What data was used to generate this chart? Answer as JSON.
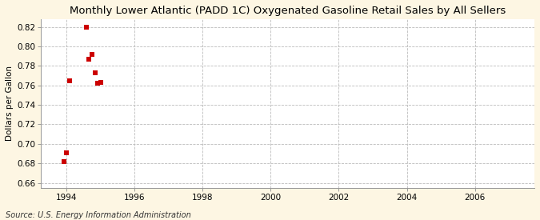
{
  "title": "Monthly Lower Atlantic (PADD 1C) Oxygenated Gasoline Retail Sales by All Sellers",
  "ylabel": "Dollars per Gallon",
  "source": "Source: U.S. Energy Information Administration",
  "background_color": "#fdf6e3",
  "plot_bg_color": "#ffffff",
  "x_data": [
    1993.917,
    1994.0,
    1994.083,
    1994.583,
    1994.667,
    1994.75,
    1994.833,
    1994.917,
    1995.0
  ],
  "y_data": [
    0.682,
    0.691,
    0.765,
    0.82,
    0.787,
    0.792,
    0.773,
    0.762,
    0.763
  ],
  "marker_color": "#cc0000",
  "marker_size": 4,
  "xlim": [
    1993.25,
    2007.75
  ],
  "ylim": [
    0.655,
    0.828
  ],
  "xticks": [
    1994,
    1996,
    1998,
    2000,
    2002,
    2004,
    2006
  ],
  "yticks": [
    0.66,
    0.68,
    0.7,
    0.72,
    0.74,
    0.76,
    0.78,
    0.8,
    0.82
  ],
  "title_fontsize": 9.5,
  "label_fontsize": 7.5,
  "tick_fontsize": 7.5,
  "source_fontsize": 7.0,
  "grid_color": "#bbbbbb",
  "spine_color": "#999999"
}
